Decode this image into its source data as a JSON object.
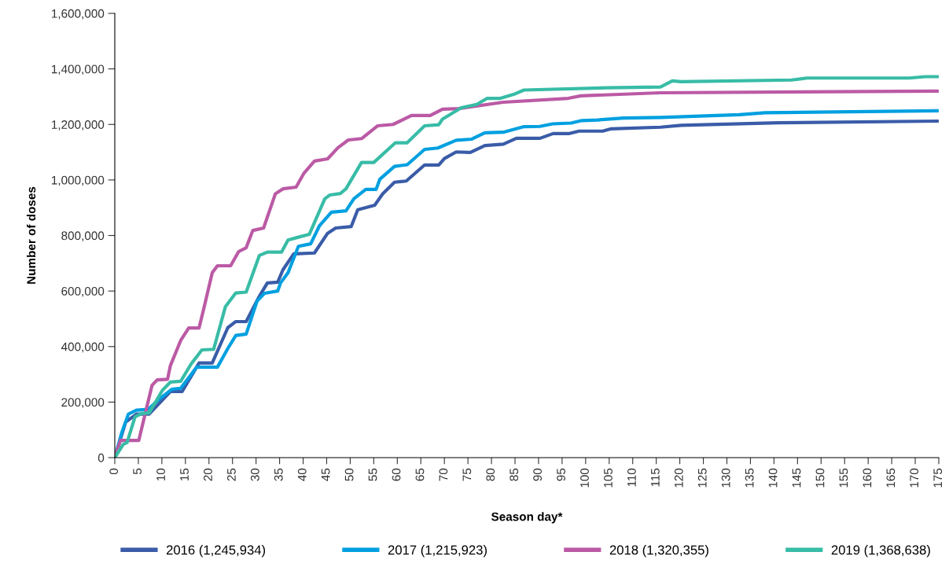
{
  "chart_data": {
    "type": "line",
    "xlabel": "Season day*",
    "ylabel": "Number of doses",
    "xlim": [
      0,
      175
    ],
    "xticks": [
      0,
      5,
      10,
      15,
      20,
      25,
      30,
      35,
      40,
      45,
      50,
      55,
      60,
      65,
      70,
      75,
      80,
      85,
      90,
      95,
      100,
      105,
      110,
      115,
      120,
      125,
      130,
      135,
      140,
      145,
      150,
      155,
      160,
      165,
      170,
      175
    ],
    "ylim": [
      0,
      1600000
    ],
    "yticks": [
      {
        "value": 0,
        "label": "0"
      },
      {
        "value": 200000,
        "label": "200,000"
      },
      {
        "value": 400000,
        "label": "400,000"
      },
      {
        "value": 600000,
        "label": "600,000"
      },
      {
        "value": 800000,
        "label": "800,000"
      },
      {
        "value": 1000000,
        "label": "1,000,000"
      },
      {
        "value": 1200000,
        "label": "1,200,000"
      },
      {
        "value": 1400000,
        "label": "1,400,000"
      },
      {
        "value": 1600000,
        "label": "1,600,000"
      }
    ],
    "grid": false,
    "legend": "bottom",
    "marker": "none",
    "line_style": "solid",
    "series": [
      {
        "name": "2016 (1,245,934)",
        "color": "#3a5ca8",
        "x": [
          0,
          2.3,
          4.6,
          7.3,
          11.8,
          14.3,
          17.9,
          20.7,
          24,
          25.7,
          27.9,
          30.7,
          32.4,
          34.6,
          35.7,
          38,
          42.4,
          45.2,
          46.9,
          50.2,
          51.6,
          55.2,
          56.9,
          59.4,
          61.9,
          65.8,
          68.8,
          70,
          72.5,
          75.5,
          78.6,
          82.5,
          85.3,
          90.3,
          93.1,
          96.4,
          98.6,
          103.6,
          105.3,
          115.9,
          120.3,
          141,
          174.8
        ],
        "values": [
          0,
          128000,
          157000,
          157000,
          238000,
          238000,
          341000,
          341000,
          468000,
          490000,
          490000,
          581000,
          629000,
          632000,
          676000,
          734000,
          737000,
          808000,
          827000,
          832000,
          893000,
          909000,
          950000,
          992000,
          996000,
          1054000,
          1054000,
          1077000,
          1101000,
          1099000,
          1124000,
          1129000,
          1150000,
          1150000,
          1167000,
          1167000,
          1176000,
          1176000,
          1184000,
          1190000,
          1197000,
          1206000,
          1212000
        ]
      },
      {
        "name": "2017 (1,215,923)",
        "color": "#00a0e0",
        "x": [
          0,
          1.5,
          2.9,
          4.6,
          7.1,
          9.6,
          12.1,
          14,
          17.4,
          21.8,
          24,
          25.7,
          27.9,
          30.2,
          31.8,
          34.6,
          35.2,
          36.8,
          39,
          41.6,
          43.5,
          46,
          49.1,
          50.8,
          53.3,
          55.5,
          56.3,
          59.4,
          62.1,
          65.8,
          68.6,
          72.5,
          75.8,
          78.6,
          82.5,
          86.9,
          90.3,
          93,
          96.9,
          99.2,
          102.5,
          108,
          115.9,
          132.6,
          138.1,
          174.8
        ],
        "values": [
          0,
          91000,
          157000,
          171000,
          174000,
          213000,
          246000,
          250000,
          326000,
          326000,
          393000,
          440000,
          445000,
          563000,
          592000,
          600000,
          629000,
          666000,
          761000,
          770000,
          836000,
          884000,
          889000,
          933000,
          966000,
          966000,
          1003000,
          1049000,
          1055000,
          1110000,
          1115000,
          1143000,
          1147000,
          1170000,
          1172000,
          1192000,
          1193000,
          1202000,
          1205000,
          1214000,
          1216000,
          1223000,
          1225000,
          1235000,
          1242000,
          1249000
        ]
      },
      {
        "name": "2018 (1,320,355)",
        "color": "#bb5aa5",
        "x": [
          0,
          1.2,
          5.1,
          7.9,
          9,
          11.2,
          11.8,
          14,
          15.7,
          17.9,
          19,
          20.7,
          21.8,
          24.6,
          26.3,
          27.9,
          29.3,
          31.6,
          34.1,
          35.7,
          38.5,
          40.2,
          42.4,
          45.2,
          47.4,
          49.6,
          52.4,
          55.8,
          59.1,
          63,
          67,
          69.6,
          73,
          82.5,
          96.3,
          99,
          115.9,
          174.8
        ],
        "values": [
          0,
          62000,
          62000,
          260000,
          280000,
          282000,
          331000,
          422000,
          467000,
          467000,
          544000,
          666000,
          691000,
          691000,
          742000,
          756000,
          818000,
          827000,
          950000,
          968000,
          974000,
          1025000,
          1068000,
          1076000,
          1116000,
          1144000,
          1149000,
          1195000,
          1200000,
          1232000,
          1232000,
          1255000,
          1257000,
          1280000,
          1294000,
          1303000,
          1314000,
          1320000
        ]
      },
      {
        "name": "2019 (1,368,638)",
        "color": "#38bca6",
        "x": [
          0,
          1.8,
          2.6,
          4.3,
          5.7,
          7.3,
          10.1,
          11.8,
          14,
          16.2,
          18.5,
          21,
          23.5,
          25.7,
          27.9,
          30.7,
          32.4,
          35.4,
          36.8,
          39,
          41.3,
          44.6,
          45.7,
          47.9,
          49.1,
          52.4,
          55,
          59.6,
          62.1,
          65.8,
          68.8,
          69.6,
          73.6,
          76.9,
          79.1,
          81.9,
          84.7,
          86.9,
          104.7,
          115.9,
          118.4,
          120.3,
          143.7,
          147,
          168.8,
          172.1,
          174.8
        ],
        "values": [
          0,
          48000,
          54000,
          147000,
          159000,
          161000,
          242000,
          272000,
          275000,
          337000,
          388000,
          390000,
          544000,
          593000,
          596000,
          728000,
          740000,
          740000,
          784000,
          794000,
          804000,
          932000,
          946000,
          951000,
          968000,
          1063000,
          1063000,
          1134000,
          1134000,
          1195000,
          1199000,
          1219000,
          1260000,
          1272000,
          1294000,
          1294000,
          1308000,
          1324000,
          1332000,
          1335000,
          1357000,
          1354000,
          1360000,
          1367000,
          1367000,
          1372000,
          1372000
        ]
      }
    ]
  }
}
